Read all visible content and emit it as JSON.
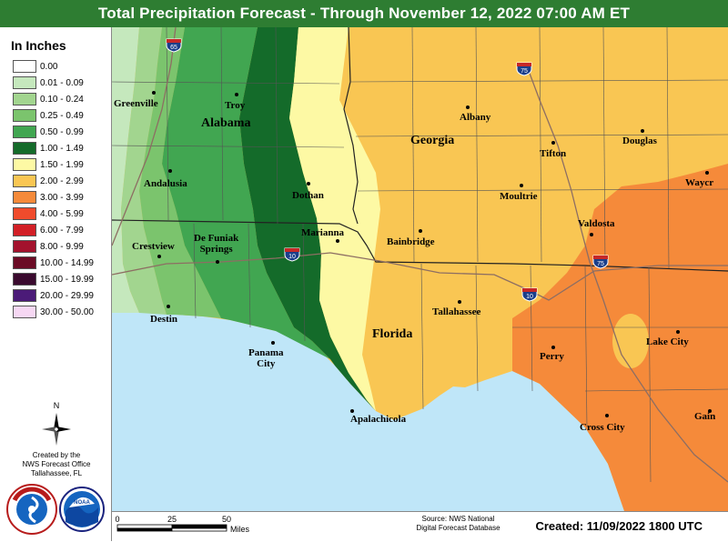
{
  "title": "Total Precipitation Forecast - Through November 12, 2022 07:00 AM ET",
  "colors": {
    "title_bar": "#2e7d32",
    "water": "#bfe6f8",
    "c0_01": "#c5e8bd",
    "c0_10": "#a2d58f",
    "c0_25": "#7bc46d",
    "c0_50": "#41a651",
    "c1_00": "#146b2a",
    "c1_50": "#fdf9a4",
    "c2_00": "#f9c653",
    "c3_00": "#f58a3a"
  },
  "legend": {
    "title": "In Inches",
    "items": [
      {
        "label": "0.00",
        "color": "#ffffff"
      },
      {
        "label": "0.01 - 0.09",
        "color": "#c5e8bd"
      },
      {
        "label": "0.10 - 0.24",
        "color": "#a2d58f"
      },
      {
        "label": "0.25 - 0.49",
        "color": "#7bc46d"
      },
      {
        "label": "0.50 - 0.99",
        "color": "#41a651"
      },
      {
        "label": "1.00 - 1.49",
        "color": "#146b2a"
      },
      {
        "label": "1.50 - 1.99",
        "color": "#fdf9a4"
      },
      {
        "label": "2.00 - 2.99",
        "color": "#f9c653"
      },
      {
        "label": "3.00 - 3.99",
        "color": "#f58a3a"
      },
      {
        "label": "4.00 - 5.99",
        "color": "#f04b2c"
      },
      {
        "label": "6.00 - 7.99",
        "color": "#d21f26"
      },
      {
        "label": "8.00 - 9.99",
        "color": "#a3122d"
      },
      {
        "label": "10.00 - 14.99",
        "color": "#6b0b25"
      },
      {
        "label": "15.00 - 19.99",
        "color": "#3a0a2e"
      },
      {
        "label": "20.00 - 29.99",
        "color": "#4b1b78"
      },
      {
        "label": "30.00 - 50.00",
        "color": "#f6d7f3"
      }
    ]
  },
  "compass_letter": "N",
  "credit_lines": [
    "Created by the",
    "NWS Forecast Office",
    "Tallahassee, FL"
  ],
  "logos": {
    "nws_text": "NATIONAL WEATHER SERVICE",
    "noaa_text": "NOAA"
  },
  "states": {
    "alabama": "Alabama",
    "georgia": "Georgia",
    "florida": "Florida"
  },
  "cities": {
    "greenville": "Greenville",
    "troy": "Troy",
    "andalusia": "Andalusia",
    "dothan": "Dothan",
    "crestview": "Crestview",
    "defuniak_1": "De Funiak",
    "defuniak_2": "Springs",
    "marianna": "Marianna",
    "destin": "Destin",
    "panama_1": "Panama",
    "panama_2": "City",
    "albany": "Albany",
    "tifton": "Tifton",
    "douglas": "Douglas",
    "moultrie": "Moultrie",
    "waycross": "Waycr",
    "valdosta": "Valdosta",
    "bainbridge": "Bainbridge",
    "tallahassee": "Tallahassee",
    "lake_city": "Lake City",
    "perry": "Perry",
    "cross_city": "Cross City",
    "gainesville": "Gain",
    "apalachicola": "Apalachicola"
  },
  "highways": {
    "i65": "65",
    "i75_north": "75",
    "i75_south": "75",
    "i10_west": "10",
    "i10_east": "10"
  },
  "scale": {
    "ticks": [
      "0",
      "25",
      "50"
    ],
    "unit": "Miles"
  },
  "source": [
    "Source: NWS National",
    "Digital Forecast Database"
  ],
  "created": "Created: 11/09/2022 1800 UTC"
}
